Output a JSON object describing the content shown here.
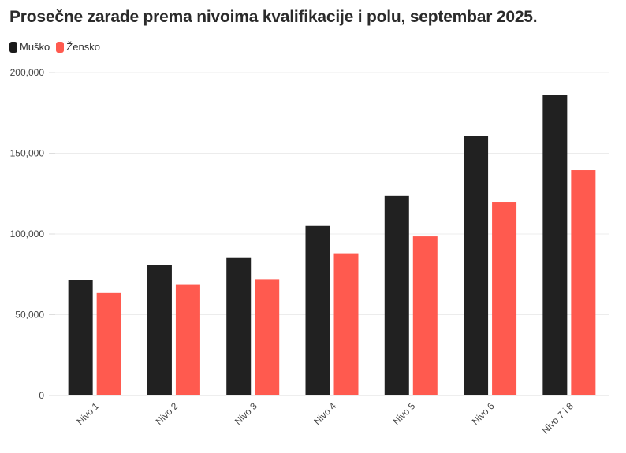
{
  "chart_data": {
    "type": "bar",
    "title": "Prosečne zarade prema nivoima kvalifikacije i polu, septembar 2025.",
    "xlabel": "",
    "ylabel": "",
    "categories": [
      "Nivo 1",
      "Nivo 2",
      "Nivo 3",
      "Nivo 4",
      "Nivo 5",
      "Nivo 6",
      "Nivo 7 i 8"
    ],
    "series": [
      {
        "name": "Muško",
        "color": "#1a1a1a",
        "values": [
          71500,
          80500,
          85500,
          105000,
          123500,
          160500,
          186000
        ]
      },
      {
        "name": "Žensko",
        "color": "#ff5a4f",
        "values": [
          63500,
          68500,
          72000,
          88000,
          98500,
          119500,
          139500
        ]
      }
    ],
    "ylim": [
      0,
      200000
    ],
    "yticks": [
      0,
      50000,
      100000,
      150000,
      200000
    ],
    "ytick_labels": [
      "0",
      "50,000",
      "100,000",
      "150,000",
      "200,000"
    ],
    "grid": true,
    "legend_position": "top-left"
  }
}
